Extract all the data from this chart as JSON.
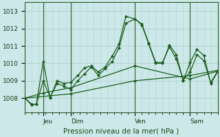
{
  "background_color": "#cce8e8",
  "plot_bg_color": "#cce8e8",
  "grid_color": "#aacccc",
  "line_color": "#1a5c1a",
  "xlabel": "Pression niveau de la mer( hPa )",
  "ylabel_ticks": [
    1008,
    1009,
    1010,
    1011,
    1012,
    1013
  ],
  "ylim": [
    1007.2,
    1013.5
  ],
  "xlim": [
    0,
    84
  ],
  "xtick_positions": [
    8,
    20,
    48,
    72
  ],
  "xtick_labels": [
    "Jeu",
    "Dim",
    "Ven",
    "Sam"
  ],
  "vlines": [
    8,
    20,
    48,
    72
  ],
  "s1_x": [
    0,
    3,
    5,
    8,
    11,
    14,
    17,
    20,
    23,
    26,
    29,
    32,
    35,
    38,
    41,
    44,
    48,
    51,
    54,
    57,
    60,
    63,
    66,
    69,
    72,
    75,
    78,
    81,
    84
  ],
  "s1_y": [
    1008.0,
    1007.6,
    1007.65,
    1010.1,
    1008.0,
    1009.0,
    1008.85,
    1008.9,
    1009.3,
    1009.75,
    1009.85,
    1009.5,
    1009.8,
    1010.4,
    1011.1,
    1012.7,
    1012.55,
    1012.2,
    1011.1,
    1010.0,
    1010.0,
    1011.05,
    1010.5,
    1009.0,
    1010.05,
    1010.8,
    1010.45,
    1008.85,
    1009.5
  ],
  "s2_x": [
    0,
    3,
    5,
    8,
    11,
    14,
    17,
    20,
    23,
    26,
    29,
    32,
    35,
    38,
    41,
    44,
    48,
    51,
    54,
    57,
    60,
    63,
    66,
    69,
    72,
    75,
    78,
    81,
    84
  ],
  "s2_y": [
    1008.0,
    1007.65,
    1007.65,
    1009.0,
    1008.05,
    1008.85,
    1008.7,
    1008.5,
    1009.0,
    1009.4,
    1009.8,
    1009.3,
    1009.7,
    1010.1,
    1010.9,
    1012.3,
    1012.55,
    1012.25,
    1011.15,
    1010.05,
    1010.05,
    1010.95,
    1010.25,
    1009.05,
    1009.5,
    1010.5,
    1010.15,
    1008.9,
    1009.55
  ],
  "s3_x": [
    0,
    8,
    20,
    48,
    72,
    84
  ],
  "s3_y": [
    1008.0,
    1008.3,
    1008.6,
    1009.85,
    1009.1,
    1009.55
  ],
  "s4_x": [
    0,
    20,
    48,
    72,
    84
  ],
  "s4_y": [
    1008.0,
    1008.25,
    1009.0,
    1009.3,
    1009.6
  ],
  "marker_size": 2.5,
  "linewidth": 0.9
}
